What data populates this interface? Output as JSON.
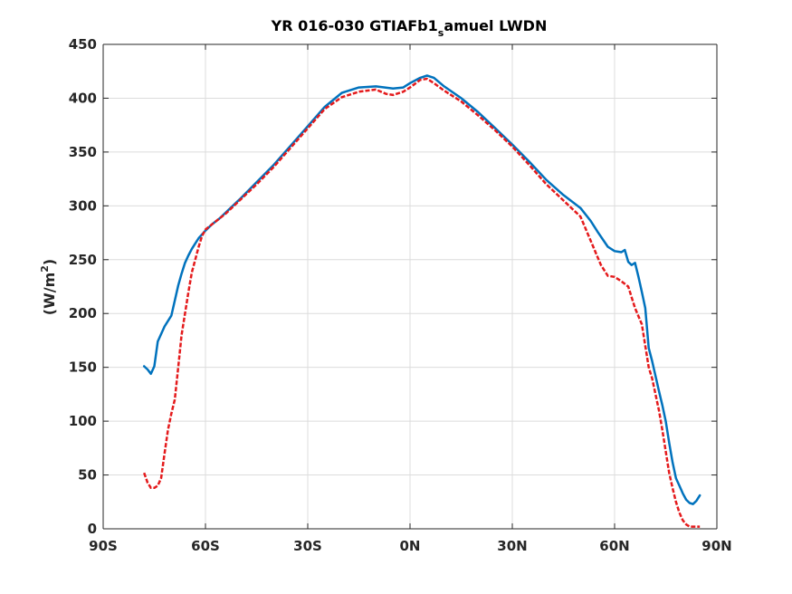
{
  "chart_data": {
    "type": "line",
    "title": "YR 016-030 GTIAFb1_samuel LWDN",
    "title_parts": {
      "pre": "YR 016-030 GTIAFb1",
      "sub": "s",
      "post": "amuel LWDN"
    },
    "xlabel": "",
    "ylabel": "(W/m2)",
    "ylabel_parts": {
      "pre": "(W/m",
      "sup": "2",
      "post": ")"
    },
    "xlim": [
      -90,
      90
    ],
    "ylim": [
      0,
      450
    ],
    "grid": true,
    "xticks": [
      -90,
      -60,
      -30,
      0,
      30,
      60,
      90
    ],
    "xtick_labels": [
      "90S",
      "60S",
      "30S",
      "0N",
      "30N",
      "60N",
      "90N"
    ],
    "yticks": [
      0,
      50,
      100,
      150,
      200,
      250,
      300,
      350,
      400,
      450
    ],
    "ytick_labels": [
      "0",
      "50",
      "100",
      "150",
      "200",
      "250",
      "300",
      "350",
      "400",
      "450"
    ],
    "series": [
      {
        "color": "#0072bd",
        "style": "solid",
        "x": [
          -78,
          -77,
          -76,
          -75,
          -74,
          -72,
          -70,
          -69,
          -68,
          -67,
          -66,
          -65,
          -64,
          -63,
          -62,
          -60,
          -58,
          -56,
          -54,
          -50,
          -45,
          -40,
          -35,
          -30,
          -25,
          -20,
          -15,
          -10,
          -5,
          -2,
          0,
          3,
          5,
          7,
          10,
          15,
          20,
          25,
          30,
          35,
          40,
          45,
          50,
          53,
          55,
          58,
          60,
          62,
          63,
          64,
          65,
          66,
          67,
          68,
          69,
          70,
          71,
          72,
          73,
          74,
          75,
          76,
          77,
          78,
          79,
          80,
          81,
          82,
          83,
          84,
          85
        ],
        "y": [
          151,
          148,
          144,
          151,
          174,
          188,
          198,
          212,
          226,
          237,
          247,
          254,
          260,
          265,
          270,
          277,
          283,
          288,
          294,
          306,
          322,
          338,
          356,
          374,
          392,
          405,
          410,
          411,
          409,
          410,
          414,
          419,
          421,
          419,
          411,
          400,
          387,
          372,
          357,
          341,
          324,
          310,
          298,
          286,
          276,
          262,
          258,
          257,
          259,
          248,
          245,
          247,
          234,
          220,
          205,
          168,
          156,
          142,
          128,
          115,
          100,
          80,
          62,
          47,
          40,
          33,
          27,
          24,
          23,
          26,
          31
        ]
      },
      {
        "color": "#e41a1c",
        "style": "dashed",
        "x": [
          -78,
          -77,
          -76,
          -75,
          -74,
          -73,
          -72,
          -71,
          -70,
          -69,
          -68,
          -67,
          -66,
          -65,
          -64,
          -63,
          -62,
          -61,
          -60,
          -58,
          -56,
          -54,
          -50,
          -45,
          -40,
          -35,
          -30,
          -25,
          -20,
          -15,
          -10,
          -7,
          -5,
          -2,
          0,
          3,
          5,
          7,
          10,
          15,
          20,
          25,
          30,
          35,
          40,
          45,
          50,
          52,
          54,
          56,
          58,
          60,
          62,
          64,
          66,
          68,
          69,
          70,
          71,
          72,
          73,
          74,
          75,
          76,
          77,
          78,
          79,
          80,
          81,
          82,
          83,
          84,
          85
        ],
        "y": [
          52,
          43,
          38,
          38,
          40,
          47,
          70,
          92,
          107,
          120,
          150,
          180,
          200,
          220,
          238,
          250,
          262,
          272,
          278,
          283,
          288,
          293,
          305,
          320,
          336,
          354,
          372,
          390,
          401,
          406,
          408,
          404,
          403,
          406,
          410,
          417,
          418,
          414,
          407,
          397,
          384,
          370,
          355,
          338,
          320,
          305,
          290,
          275,
          260,
          245,
          235,
          234,
          230,
          225,
          205,
          190,
          170,
          150,
          140,
          125,
          110,
          92,
          72,
          52,
          38,
          25,
          15,
          8,
          4,
          2,
          2,
          2,
          2
        ]
      }
    ]
  }
}
